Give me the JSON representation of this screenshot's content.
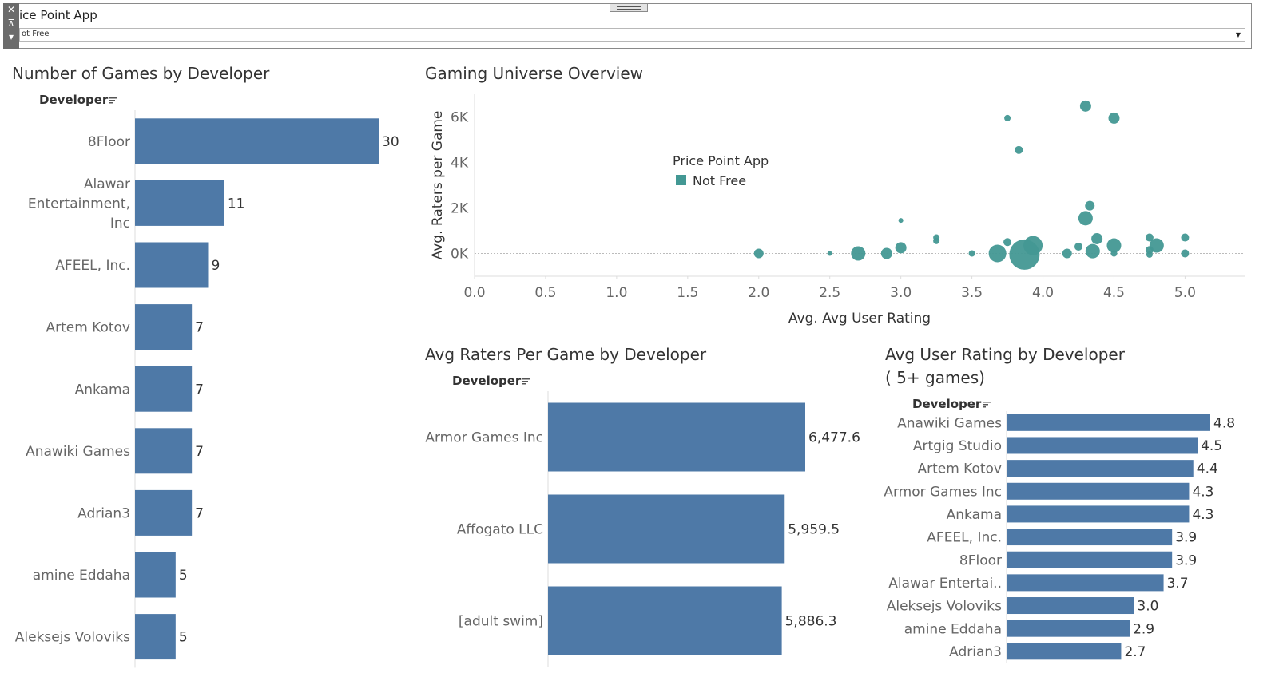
{
  "filter": {
    "title": "ice Point App",
    "value": "ot Free",
    "close_glyph": "✕",
    "pin_glyph": "⊼",
    "more_glyph": "▾"
  },
  "colors": {
    "bar": "#4e79a7",
    "bubble": "#439894",
    "axis": "#dddddd",
    "label": "#666666",
    "value": "#333333"
  },
  "charts": {
    "games": {
      "title": "Number of Games by Developer",
      "field": "Developer"
    },
    "overview": {
      "title": "Gaming Universe Overview",
      "legend": {
        "title": "Price Point App",
        "items": [
          "Not Free"
        ]
      }
    },
    "raters": {
      "title": "Avg Raters Per Game by Developer",
      "field": "Developer"
    },
    "rating": {
      "title_line1": "Avg User Rating by Developer",
      "title_line2": "( 5+ games)",
      "field": "Developer"
    }
  },
  "chart_data": [
    {
      "type": "bar",
      "orientation": "horizontal",
      "title": "Number of Games by Developer",
      "categories": [
        "8Floor",
        "Alawar Entertainment, Inc",
        "AFEEL, Inc.",
        "Artem Kotov",
        "Ankama",
        "Anawiki Games",
        "Adrian3",
        "amine Eddaha",
        "Aleksejs Voloviks"
      ],
      "labels": [
        [
          "8Floor"
        ],
        [
          "Alawar",
          "Entertainment,",
          "Inc"
        ],
        [
          "AFEEL, Inc."
        ],
        [
          "Artem Kotov"
        ],
        [
          "Ankama"
        ],
        [
          "Anawiki Games"
        ],
        [
          "Adrian3"
        ],
        [
          "amine Eddaha"
        ],
        [
          "Aleksejs Voloviks"
        ]
      ],
      "values": [
        30,
        11,
        9,
        7,
        7,
        7,
        7,
        5,
        5
      ],
      "value_labels": [
        "30",
        "11",
        "9",
        "7",
        "7",
        "7",
        "7",
        "5",
        "5"
      ],
      "xlim": [
        0,
        30
      ]
    },
    {
      "type": "scatter",
      "title": "Gaming Universe Overview",
      "xlabel": "Avg. Avg User Rating",
      "ylabel": "Avg. Raters per Game",
      "xlim": [
        0,
        5.2
      ],
      "ylim": [
        -1000,
        7000
      ],
      "xticks": [
        0.0,
        0.5,
        1.0,
        1.5,
        2.0,
        2.5,
        3.0,
        3.5,
        4.0,
        4.5,
        5.0
      ],
      "xtick_labels": [
        "0.0",
        "0.5",
        "1.0",
        "1.5",
        "2.0",
        "2.5",
        "3.0",
        "3.5",
        "4.0",
        "4.5",
        "5.0"
      ],
      "yticks": [
        0,
        2000,
        4000,
        6000
      ],
      "ytick_labels": [
        "0K",
        "2K",
        "4K",
        "6K"
      ],
      "legend": {
        "title": "Price Point App",
        "items": [
          "Not Free"
        ]
      },
      "points": [
        {
          "x": 2.0,
          "y": 0,
          "s": 6
        },
        {
          "x": 2.5,
          "y": 0,
          "s": 3
        },
        {
          "x": 2.7,
          "y": 0,
          "s": 9
        },
        {
          "x": 2.9,
          "y": 0,
          "s": 7
        },
        {
          "x": 3.0,
          "y": 250,
          "s": 7
        },
        {
          "x": 3.0,
          "y": 1450,
          "s": 3
        },
        {
          "x": 3.25,
          "y": 700,
          "s": 4
        },
        {
          "x": 3.25,
          "y": 550,
          "s": 4
        },
        {
          "x": 3.5,
          "y": 0,
          "s": 4
        },
        {
          "x": 3.68,
          "y": 0,
          "s": 11
        },
        {
          "x": 3.75,
          "y": 5950,
          "s": 4
        },
        {
          "x": 3.75,
          "y": 500,
          "s": 5
        },
        {
          "x": 3.83,
          "y": 4550,
          "s": 5
        },
        {
          "x": 3.87,
          "y": -50,
          "s": 19
        },
        {
          "x": 3.93,
          "y": 350,
          "s": 12
        },
        {
          "x": 4.17,
          "y": 0,
          "s": 6
        },
        {
          "x": 4.25,
          "y": 300,
          "s": 5
        },
        {
          "x": 4.3,
          "y": 6480,
          "s": 7
        },
        {
          "x": 4.3,
          "y": 1550,
          "s": 9
        },
        {
          "x": 4.33,
          "y": 2100,
          "s": 6
        },
        {
          "x": 4.35,
          "y": 100,
          "s": 9
        },
        {
          "x": 4.38,
          "y": 650,
          "s": 7
        },
        {
          "x": 4.5,
          "y": 5950,
          "s": 7
        },
        {
          "x": 4.5,
          "y": 350,
          "s": 9
        },
        {
          "x": 4.5,
          "y": 0,
          "s": 4
        },
        {
          "x": 4.75,
          "y": 700,
          "s": 5
        },
        {
          "x": 4.75,
          "y": 150,
          "s": 5
        },
        {
          "x": 4.75,
          "y": -50,
          "s": 4
        },
        {
          "x": 4.8,
          "y": 350,
          "s": 9
        },
        {
          "x": 5.0,
          "y": 700,
          "s": 5
        },
        {
          "x": 5.0,
          "y": 0,
          "s": 5
        }
      ]
    },
    {
      "type": "bar",
      "orientation": "horizontal",
      "title": "Avg Raters Per Game by Developer",
      "categories": [
        "Armor Games Inc",
        "Affogato LLC",
        "[adult swim]"
      ],
      "labels": [
        [
          "Armor Games Inc"
        ],
        [
          "Affogato LLC"
        ],
        [
          "[adult swim]"
        ]
      ],
      "values": [
        6477.6,
        5959.5,
        5886.3
      ],
      "value_labels": [
        "6,477.6",
        "5,959.5",
        "5,886.3"
      ],
      "xlim": [
        0,
        6477.6
      ]
    },
    {
      "type": "bar",
      "orientation": "horizontal",
      "title": "Avg User Rating by Developer ( 5+ games)",
      "categories": [
        "Anawiki Games",
        "Artgig Studio",
        "Artem Kotov",
        "Armor Games Inc",
        "Ankama",
        "AFEEL, Inc.",
        "8Floor",
        "Alawar Entertai..",
        "Aleksejs Voloviks",
        "amine Eddaha",
        "Adrian3"
      ],
      "labels": [
        [
          "Anawiki Games"
        ],
        [
          "Artgig Studio"
        ],
        [
          "Artem Kotov"
        ],
        [
          "Armor Games Inc"
        ],
        [
          "Ankama"
        ],
        [
          "AFEEL, Inc."
        ],
        [
          "8Floor"
        ],
        [
          "Alawar Entertai.."
        ],
        [
          "Aleksejs Voloviks"
        ],
        [
          "amine Eddaha"
        ],
        [
          "Adrian3"
        ]
      ],
      "values": [
        4.8,
        4.5,
        4.4,
        4.3,
        4.3,
        3.9,
        3.9,
        3.7,
        3.0,
        2.9,
        2.7
      ],
      "value_labels": [
        "4.8",
        "4.5",
        "4.4",
        "4.3",
        "4.3",
        "3.9",
        "3.9",
        "3.7",
        "3.0",
        "2.9",
        "2.7"
      ],
      "xlim": [
        0,
        4.8
      ]
    }
  ]
}
